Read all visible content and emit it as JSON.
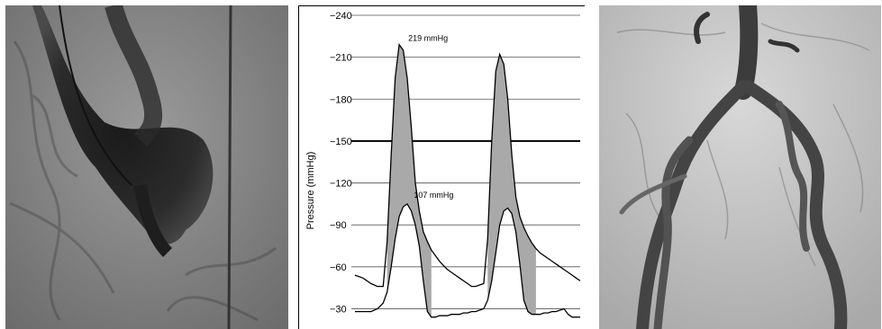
{
  "panels": {
    "left": {
      "kind": "photo",
      "subject": "contrast-filled sac with catheter"
    },
    "right": {
      "kind": "photo",
      "subject": "branching contrast-filled vessels"
    }
  },
  "chart_data": {
    "type": "line",
    "title": "",
    "xlabel": "",
    "ylabel": "Pressure (mmHg)",
    "ylim": [
      20,
      240
    ],
    "y_ticks": [
      {
        "value": 240,
        "label": "−240"
      },
      {
        "value": 210,
        "label": "−210"
      },
      {
        "value": 180,
        "label": "−180"
      },
      {
        "value": 150,
        "label": "−150"
      },
      {
        "value": 120,
        "label": "−120"
      },
      {
        "value": 90,
        "label": "−90"
      },
      {
        "value": 60,
        "label": "−60"
      },
      {
        "value": 30,
        "label": "−30"
      }
    ],
    "grid": true,
    "highlight_line": 150,
    "series": [
      {
        "x": [
          0,
          10,
          20,
          28,
          35,
          40,
          45,
          50,
          55,
          60,
          65,
          70,
          75,
          80,
          85,
          90,
          95,
          100,
          105,
          110,
          115,
          120,
          125,
          130,
          135,
          140,
          145,
          150,
          155,
          160,
          165,
          170,
          175,
          180,
          185,
          190,
          195,
          200,
          205,
          210,
          215,
          220,
          225,
          230,
          235,
          240,
          245,
          250,
          255,
          260,
          265,
          270,
          275,
          280
        ],
        "y": [
          54,
          52,
          48,
          46,
          46,
          78,
          140,
          195,
          219,
          215,
          195,
          160,
          120,
          100,
          85,
          78,
          72,
          68,
          64,
          61,
          58,
          56,
          54,
          52,
          50,
          48,
          46,
          46,
          47,
          48,
          80,
          150,
          200,
          212,
          205,
          180,
          140,
          110,
          96,
          88,
          82,
          77,
          73,
          70,
          68,
          66,
          64,
          62,
          60,
          58,
          56,
          54,
          52,
          50
        ]
      },
      {
        "x": [
          0,
          10,
          20,
          28,
          35,
          40,
          45,
          50,
          55,
          60,
          65,
          70,
          75,
          80,
          85,
          90,
          95,
          100,
          105,
          110,
          115,
          120,
          125,
          130,
          135,
          140,
          145,
          150,
          155,
          160,
          165,
          170,
          175,
          180,
          185,
          190,
          195,
          200,
          205,
          210,
          215,
          220,
          225,
          230,
          235,
          240,
          245,
          250,
          255,
          260,
          265,
          270,
          275,
          280
        ],
        "y": [
          28,
          28,
          28,
          30,
          34,
          42,
          60,
          80,
          96,
          103,
          105,
          100,
          90,
          75,
          50,
          28,
          24,
          24,
          25,
          25,
          25,
          26,
          26,
          26,
          27,
          27,
          28,
          28,
          29,
          30,
          36,
          50,
          70,
          90,
          100,
          102,
          98,
          85,
          62,
          36,
          28,
          26,
          26,
          26,
          27,
          27,
          28,
          28,
          29,
          30,
          26,
          24,
          24,
          24
        ]
      }
    ],
    "annotations": [
      {
        "text": "219 mmHg",
        "x": 55,
        "y": 219
      },
      {
        "text": "107 mmHg",
        "x": 62,
        "y": 107
      }
    ]
  }
}
